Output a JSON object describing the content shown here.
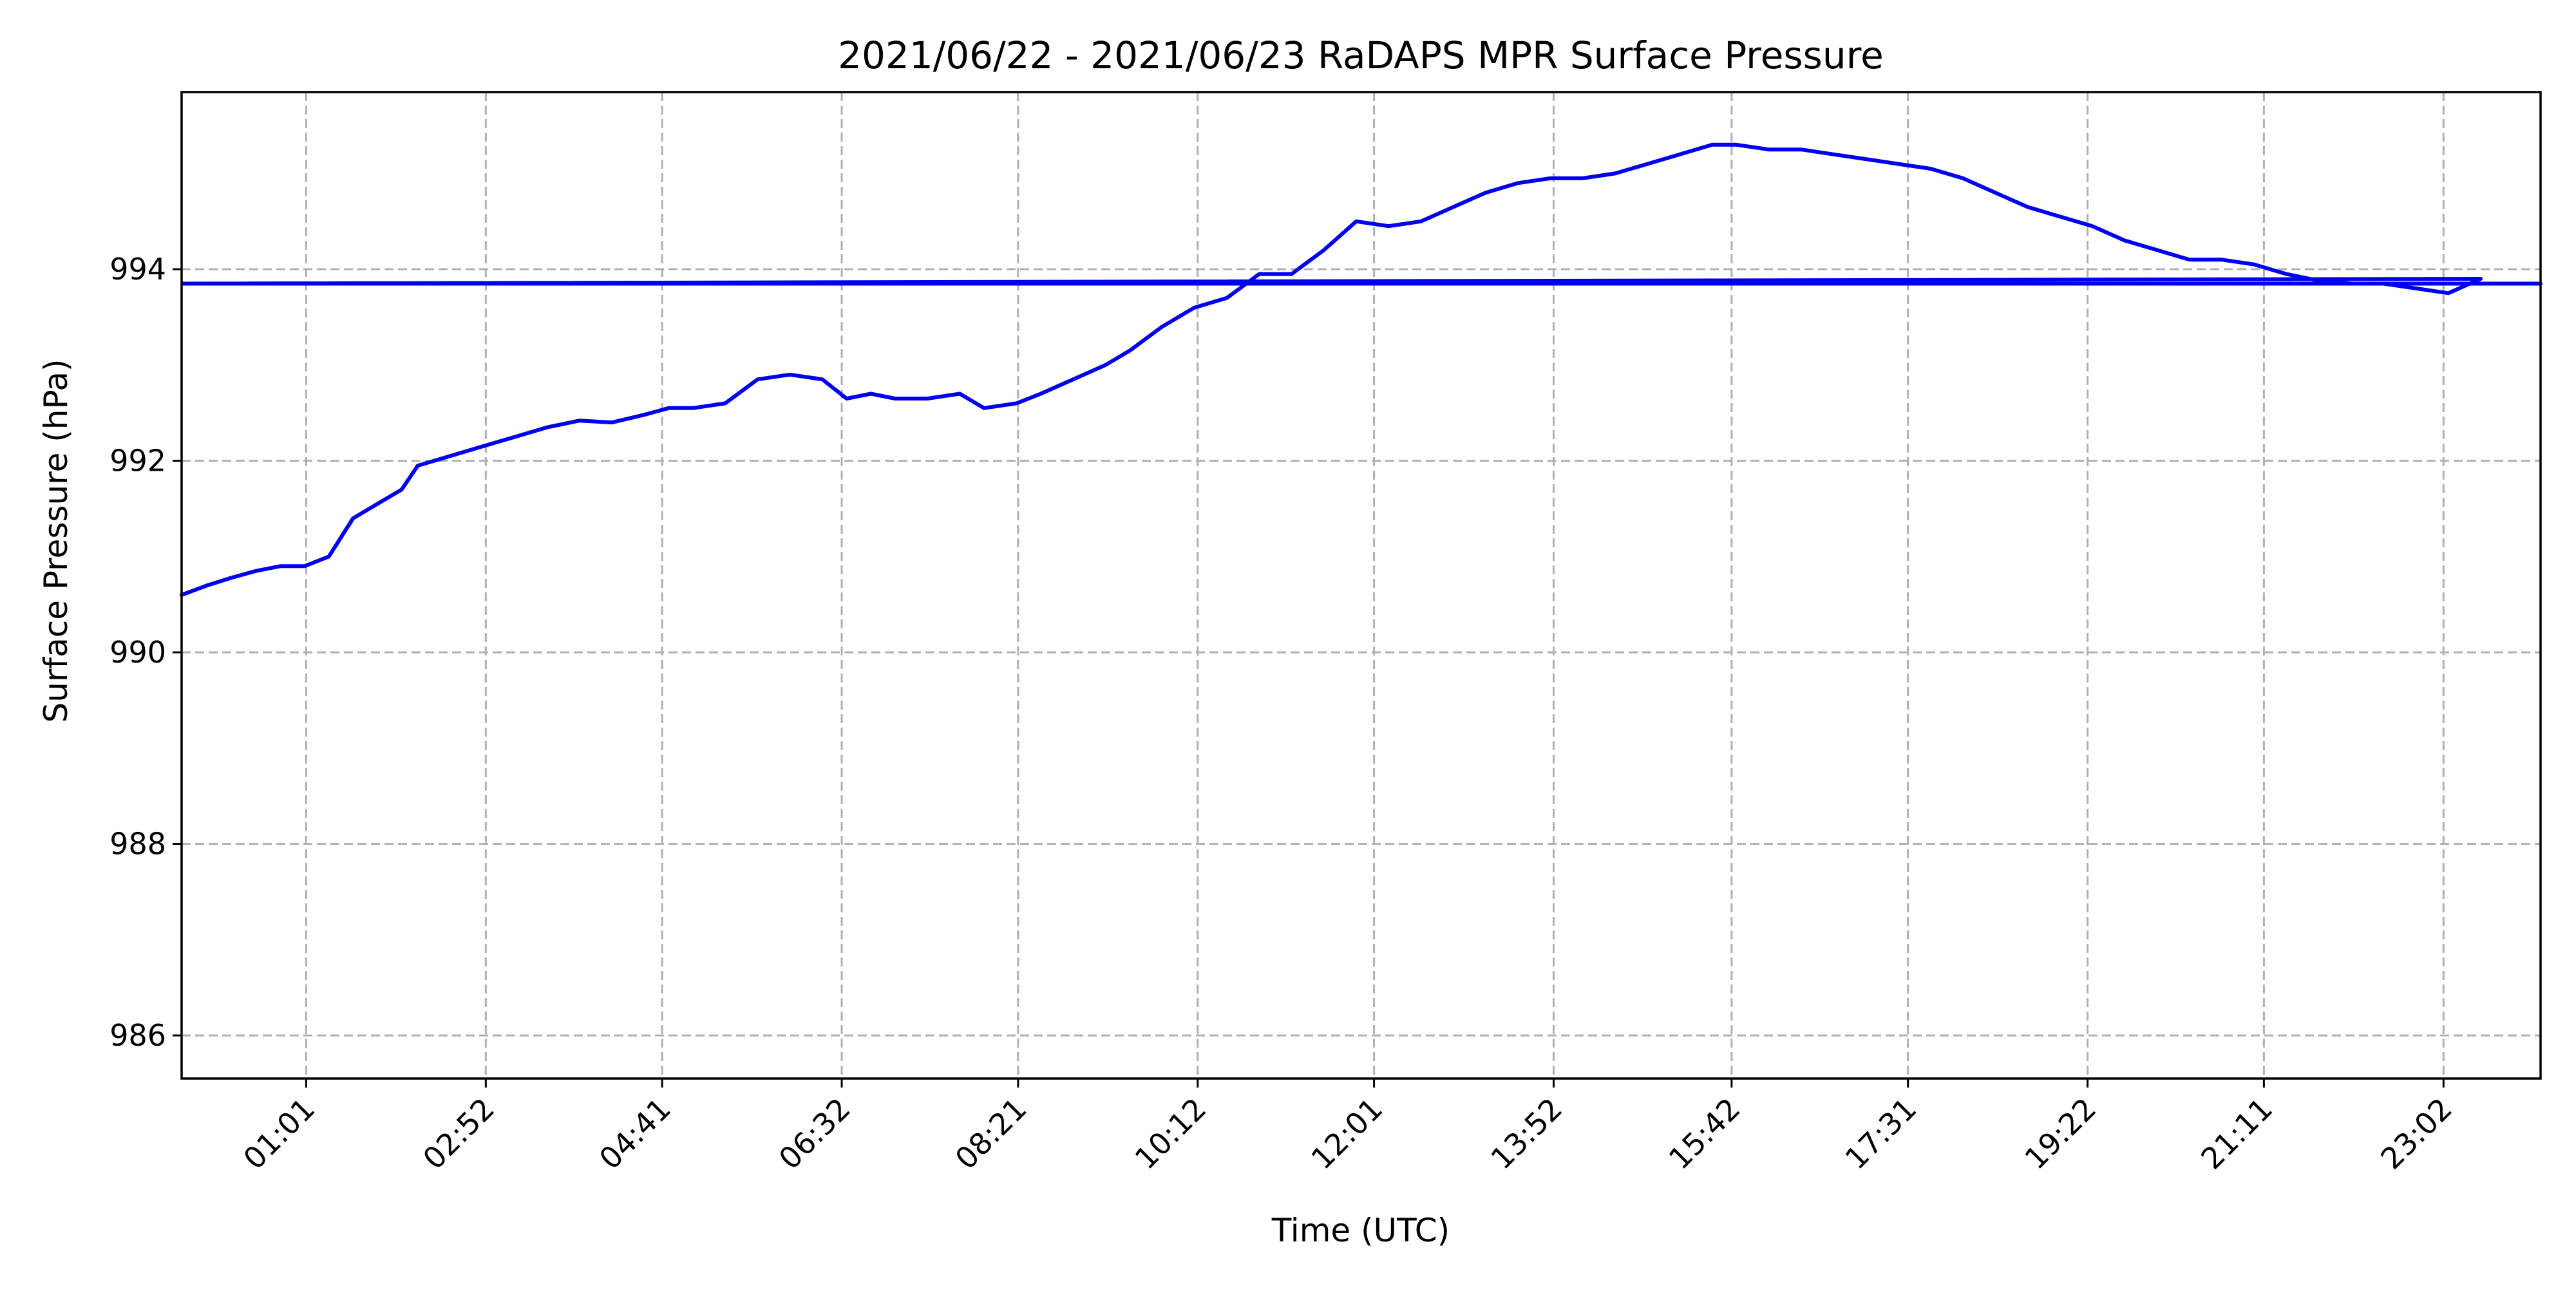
{
  "chart_data": {
    "type": "line",
    "title": "2021/06/22 - 2021/06/23 RaDAPS MPR Surface Pressure",
    "xlabel": "Time (UTC)",
    "ylabel": "Surface Pressure (hPa)",
    "x_unit": "time of day (HH:MM, UTC)",
    "xlim": [
      "23:44",
      "24:02"
    ],
    "ylim": [
      985.55,
      995.85
    ],
    "x_ticks": [
      "01:01",
      "02:52",
      "04:41",
      "06:32",
      "08:21",
      "10:12",
      "12:01",
      "13:52",
      "15:42",
      "17:31",
      "19:22",
      "21:11",
      "23:02"
    ],
    "y_ticks": [
      986,
      988,
      990,
      992,
      994
    ],
    "grid": true,
    "line_color": "#0000ee",
    "series": [
      {
        "name": "",
        "points": [
          [
            "23:44",
            990.6
          ],
          [
            "00:00",
            990.7
          ],
          [
            "00:15",
            990.78
          ],
          [
            "00:30",
            990.85
          ],
          [
            "00:45",
            990.9
          ],
          [
            "01:00",
            990.9
          ],
          [
            "01:15",
            991.0
          ],
          [
            "01:30",
            991.4
          ],
          [
            "01:45",
            991.55
          ],
          [
            "02:00",
            991.7
          ],
          [
            "02:10",
            991.95
          ],
          [
            "02:30",
            992.05
          ],
          [
            "02:50",
            992.15
          ],
          [
            "03:10",
            992.25
          ],
          [
            "03:30",
            992.35
          ],
          [
            "03:50",
            992.42
          ],
          [
            "04:10",
            992.4
          ],
          [
            "04:30",
            992.48
          ],
          [
            "04:45",
            992.55
          ],
          [
            "05:00",
            992.55
          ],
          [
            "05:20",
            992.6
          ],
          [
            "05:40",
            992.85
          ],
          [
            "06:00",
            992.9
          ],
          [
            "06:20",
            992.85
          ],
          [
            "06:35",
            992.65
          ],
          [
            "06:50",
            992.7
          ],
          [
            "07:05",
            992.65
          ],
          [
            "07:25",
            992.65
          ],
          [
            "07:45",
            992.7
          ],
          [
            "08:00",
            992.55
          ],
          [
            "08:20",
            992.6
          ],
          [
            "08:35",
            992.7
          ],
          [
            "08:55",
            992.85
          ],
          [
            "09:15",
            993.0
          ],
          [
            "09:30",
            993.15
          ],
          [
            "09:50",
            993.4
          ],
          [
            "10:10",
            993.6
          ],
          [
            "10:30",
            993.7
          ],
          [
            "10:50",
            993.95
          ],
          [
            "11:10",
            993.95
          ],
          [
            "11:30",
            994.2
          ],
          [
            "11:50",
            994.5
          ],
          [
            "12:10",
            994.45
          ],
          [
            "12:30",
            994.5
          ],
          [
            "12:50",
            994.65
          ],
          [
            "13:10",
            994.8
          ],
          [
            "13:30",
            994.9
          ],
          [
            "13:50",
            994.95
          ],
          [
            "14:10",
            994.95
          ],
          [
            "14:30",
            995.0
          ],
          [
            "14:50",
            995.1
          ],
          [
            "15:10",
            995.2
          ],
          [
            "15:30",
            995.3
          ],
          [
            "15:45",
            995.3
          ],
          [
            "16:05",
            995.25
          ],
          [
            "16:25",
            995.25
          ],
          [
            "16:45",
            995.2
          ],
          [
            "17:05",
            995.15
          ],
          [
            "17:25",
            995.1
          ],
          [
            "17:45",
            995.05
          ],
          [
            "18:05",
            994.95
          ],
          [
            "18:25",
            994.8
          ],
          [
            "18:45",
            994.65
          ],
          [
            "19:05",
            994.55
          ],
          [
            "19:25",
            994.45
          ],
          [
            "19:45",
            994.3
          ],
          [
            "20:05",
            994.2
          ],
          [
            "20:25",
            994.1
          ],
          [
            "20:45",
            994.1
          ],
          [
            "21:05",
            994.05
          ],
          [
            "21:25",
            993.95
          ],
          [
            "21:45",
            993.88
          ],
          [
            "22:05",
            993.85
          ],
          [
            "22:25",
            993.85
          ],
          [
            "22:45",
            993.8
          ],
          [
            "23:05",
            993.75
          ],
          [
            "23:25",
            993.9
          ],
          [
            "23:45",
            993.85
          ],
          [
            "24:02",
            993.85
          ]
        ]
      }
    ]
  }
}
